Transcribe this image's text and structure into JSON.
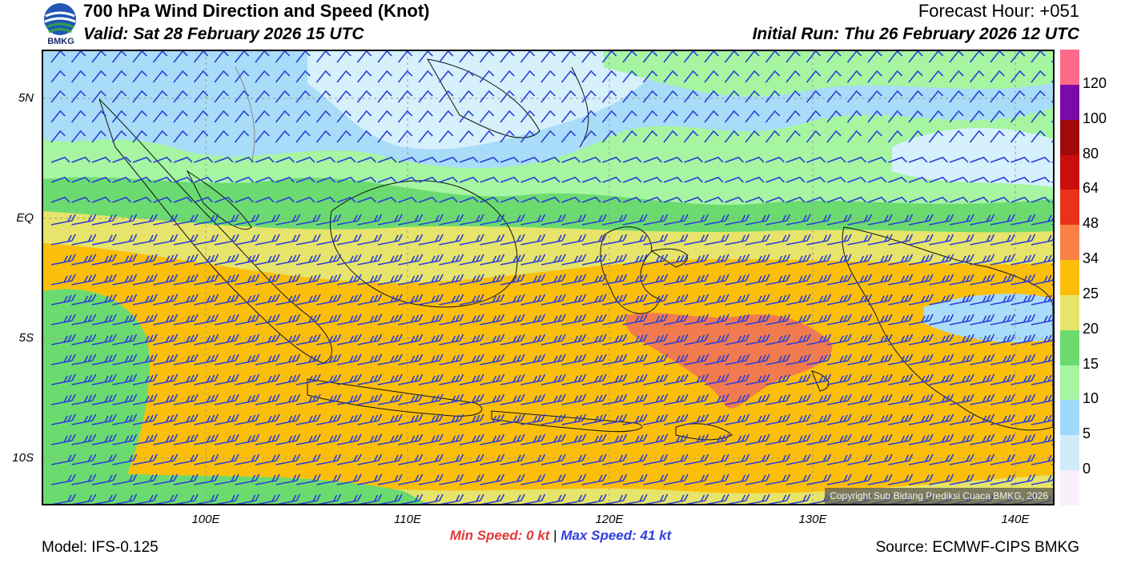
{
  "header": {
    "logo_text": "BMKG",
    "title": "700 hPa Wind Direction and Speed (Knot)",
    "valid": "Valid: Sat 28 February 2026 15 UTC",
    "forecast_hour": "Forecast Hour: +051",
    "initial_run": "Initial Run: Thu 26 February 2026 12 UTC"
  },
  "axes": {
    "lat_labels": [
      "5N",
      "EQ",
      "5S",
      "10S"
    ],
    "lon_labels": [
      "100E",
      "110E",
      "120E",
      "130E",
      "140E"
    ]
  },
  "colorbar": {
    "labels": [
      "120",
      "100",
      "80",
      "64",
      "48",
      "34",
      "25",
      "20",
      "15",
      "10",
      "5",
      "0"
    ],
    "colors": [
      "#f9f0fb",
      "#d0ecfb",
      "#9fd8fb",
      "#a5f5a1",
      "#6bdb70",
      "#e8e46a",
      "#fbbf0b",
      "#fb8048",
      "#e8321a",
      "#c80e0e",
      "#a00a0a",
      "#7b0aa8",
      "#ff6a8a"
    ]
  },
  "footer": {
    "min_speed_label": "Min Speed:",
    "min_speed_value": "0 kt",
    "separator": "|",
    "max_speed_label": "Max Speed:",
    "max_speed_value": "41 kt",
    "model": "Model: IFS-0.125",
    "source": "Source: ECMWF-CIPS BMKG",
    "copyright": "Copyright Sub Bidang Prediksi Cuaca BMKG, 2026"
  },
  "colors": {
    "barb": "#2b3ed8",
    "lightblue": "#a8dcf8",
    "paleblue": "#d6f0fc",
    "lightgreen": "#a5f5a1",
    "green": "#6bdb70",
    "yellow": "#e6e46a",
    "orange": "#fbbf0b",
    "red": "#f27a4f"
  }
}
